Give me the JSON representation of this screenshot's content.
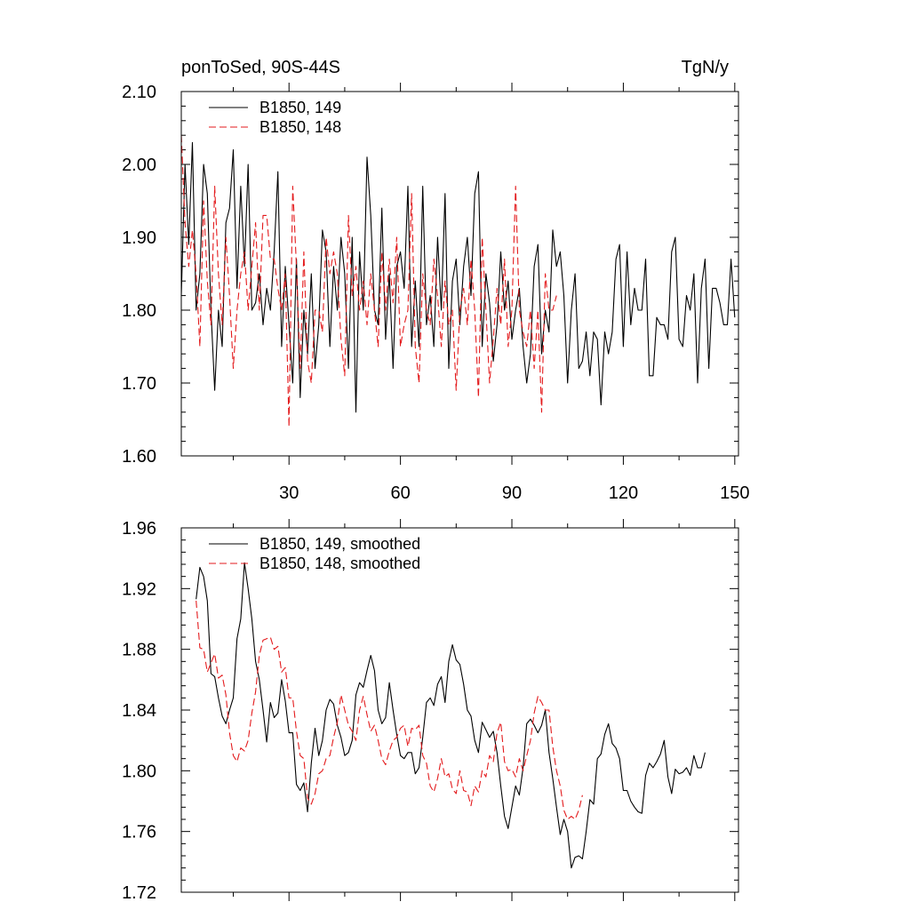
{
  "chart_data": [
    {
      "type": "line",
      "title": "ponToSed, 90S-44S",
      "units": "TgN/y",
      "xlim": [
        1,
        151
      ],
      "ylim": [
        1.6,
        2.1
      ],
      "x_tick_labels": [
        "30",
        "60",
        "90",
        "120",
        "150"
      ],
      "x_tick_values": [
        30,
        60,
        90,
        120,
        150
      ],
      "y_tick_labels": [
        "1.60",
        "1.70",
        "1.80",
        "1.90",
        "2.00",
        "2.10"
      ],
      "y_tick_values": [
        1.6,
        1.7,
        1.8,
        1.9,
        2.0,
        2.1
      ],
      "series": [
        {
          "name": "B1850, 149",
          "color": "#000000",
          "dash": "solid",
          "x_start": 1,
          "values": [
            1.82,
            2.0,
            1.89,
            2.03,
            1.8,
            1.85,
            2.0,
            1.96,
            1.8,
            1.69,
            1.8,
            1.75,
            1.92,
            1.94,
            2.02,
            1.83,
            1.97,
            1.86,
            2.0,
            1.8,
            1.81,
            1.85,
            1.78,
            1.83,
            1.8,
            1.88,
            1.99,
            1.75,
            1.86,
            1.78,
            1.7,
            1.87,
            1.68,
            1.8,
            1.74,
            1.85,
            1.72,
            1.78,
            1.91,
            1.88,
            1.75,
            1.86,
            1.8,
            1.9,
            1.85,
            1.72,
            1.9,
            1.66,
            1.88,
            1.8,
            2.01,
            1.93,
            1.8,
            1.78,
            1.94,
            1.76,
            1.85,
            1.72,
            1.86,
            1.88,
            1.83,
            1.97,
            1.75,
            1.84,
            1.75,
            1.97,
            1.78,
            1.82,
            1.75,
            1.9,
            1.8,
            1.96,
            1.72,
            1.84,
            1.87,
            1.78,
            1.86,
            1.9,
            1.82,
            1.96,
            1.99,
            1.75,
            1.85,
            1.81,
            1.73,
            1.78,
            1.88,
            1.8,
            1.84,
            1.76,
            1.8,
            1.83,
            1.75,
            1.7,
            1.74,
            1.86,
            1.89,
            1.74,
            1.8,
            1.77,
            1.91,
            1.86,
            1.88,
            1.82,
            1.7,
            1.8,
            1.85,
            1.72,
            1.73,
            1.77,
            1.71,
            1.77,
            1.76,
            1.67,
            1.77,
            1.74,
            1.77,
            1.87,
            1.89,
            1.75,
            1.88,
            1.78,
            1.83,
            1.8,
            1.8,
            1.87,
            1.71,
            1.71,
            1.79,
            1.78,
            1.78,
            1.76,
            1.88,
            1.9,
            1.76,
            1.75,
            1.82,
            1.8,
            1.85,
            1.7,
            1.83,
            1.87,
            1.72,
            1.83,
            1.83,
            1.81,
            1.78,
            1.78,
            1.87,
            1.79
          ]
        },
        {
          "name": "B1850, 148",
          "color": "#e31a1c",
          "dash": "dashed",
          "x_start": 1,
          "values": [
            2.04,
            1.92,
            1.86,
            1.91,
            1.85,
            1.75,
            1.95,
            1.84,
            1.78,
            1.97,
            1.85,
            1.78,
            1.9,
            1.82,
            1.72,
            1.8,
            1.85,
            1.88,
            1.8,
            1.86,
            1.92,
            1.8,
            1.93,
            1.93,
            1.87,
            1.87,
            1.83,
            1.8,
            1.85,
            1.64,
            1.97,
            1.86,
            1.72,
            1.88,
            1.73,
            1.7,
            1.8,
            1.8,
            1.77,
            1.9,
            1.85,
            1.88,
            1.85,
            1.76,
            1.71,
            1.93,
            1.82,
            1.86,
            1.8,
            1.84,
            1.78,
            1.85,
            1.8,
            1.75,
            1.88,
            1.8,
            1.87,
            1.81,
            1.9,
            1.75,
            1.78,
            1.8,
            1.96,
            1.75,
            1.7,
            1.85,
            1.8,
            1.78,
            1.87,
            1.82,
            1.75,
            1.84,
            1.78,
            1.8,
            1.69,
            1.8,
            1.83,
            1.78,
            1.87,
            1.8,
            1.68,
            1.9,
            1.8,
            1.7,
            1.76,
            1.83,
            1.78,
            1.87,
            1.75,
            1.8,
            1.97,
            1.8,
            1.77,
            1.75,
            1.8,
            1.72,
            1.8,
            1.66,
            1.85,
            1.8,
            1.8,
            1.82
          ]
        }
      ],
      "legend": [
        {
          "label": "B1850, 149",
          "color": "#000000",
          "dash": "solid"
        },
        {
          "label": "B1850, 148",
          "color": "#e31a1c",
          "dash": "dashed"
        }
      ]
    },
    {
      "type": "line",
      "title": "",
      "xlim": [
        1,
        151
      ],
      "ylim": [
        1.72,
        1.96
      ],
      "x_tick_values": [
        30,
        60,
        90,
        120,
        150
      ],
      "y_tick_labels": [
        "1.72",
        "1.76",
        "1.80",
        "1.84",
        "1.88",
        "1.92",
        "1.96"
      ],
      "y_tick_values": [
        1.72,
        1.76,
        1.8,
        1.84,
        1.88,
        1.92,
        1.96
      ],
      "series": [
        {
          "name": "B1850, 149, smoothed",
          "color": "#000000",
          "dash": "solid",
          "x_start": 5,
          "values": [
            1.913,
            1.934,
            1.928,
            1.912,
            1.864,
            1.862,
            1.848,
            1.836,
            1.831,
            1.84,
            1.848,
            1.887,
            1.9,
            1.937,
            1.92,
            1.9,
            1.872,
            1.86,
            1.84,
            1.819,
            1.845,
            1.835,
            1.838,
            1.86,
            1.846,
            1.825,
            1.825,
            1.791,
            1.787,
            1.792,
            1.773,
            1.805,
            1.828,
            1.81,
            1.82,
            1.84,
            1.847,
            1.844,
            1.83,
            1.822,
            1.81,
            1.812,
            1.82,
            1.85,
            1.858,
            1.855,
            1.866,
            1.876,
            1.866,
            1.84,
            1.831,
            1.835,
            1.858,
            1.84,
            1.824,
            1.81,
            1.808,
            1.812,
            1.812,
            1.798,
            1.802,
            1.822,
            1.845,
            1.848,
            1.843,
            1.857,
            1.862,
            1.845,
            1.872,
            1.883,
            1.873,
            1.87,
            1.857,
            1.84,
            1.836,
            1.82,
            1.812,
            1.832,
            1.827,
            1.822,
            1.826,
            1.812,
            1.79,
            1.77,
            1.762,
            1.776,
            1.79,
            1.784,
            1.802,
            1.831,
            1.834,
            1.83,
            1.825,
            1.83,
            1.84,
            1.812,
            1.795,
            1.776,
            1.758,
            1.768,
            1.76,
            1.736,
            1.743,
            1.744,
            1.742,
            1.76,
            1.781,
            1.778,
            1.808,
            1.811,
            1.824,
            1.831,
            1.818,
            1.815,
            1.808,
            1.787,
            1.787,
            1.78,
            1.776,
            1.773,
            1.772,
            1.797,
            1.805,
            1.802,
            1.806,
            1.811,
            1.82,
            1.796,
            1.785,
            1.801,
            1.798,
            1.799,
            1.802,
            1.797,
            1.81,
            1.802,
            1.802,
            1.812
          ]
        },
        {
          "name": "B1850, 148, smoothed",
          "color": "#e31a1c",
          "dash": "dashed",
          "x_start": 5,
          "values": [
            1.912,
            1.881,
            1.88,
            1.865,
            1.871,
            1.877,
            1.861,
            1.863,
            1.85,
            1.825,
            1.81,
            1.806,
            1.815,
            1.813,
            1.82,
            1.838,
            1.852,
            1.876,
            1.886,
            1.887,
            1.888,
            1.88,
            1.882,
            1.865,
            1.868,
            1.848,
            1.848,
            1.826,
            1.81,
            1.808,
            1.782,
            1.778,
            1.785,
            1.798,
            1.8,
            1.808,
            1.81,
            1.822,
            1.832,
            1.85,
            1.84,
            1.83,
            1.826,
            1.82,
            1.84,
            1.849,
            1.837,
            1.826,
            1.83,
            1.82,
            1.808,
            1.804,
            1.813,
            1.82,
            1.822,
            1.828,
            1.83,
            1.816,
            1.828,
            1.827,
            1.83,
            1.81,
            1.805,
            1.79,
            1.786,
            1.795,
            1.808,
            1.796,
            1.798,
            1.788,
            1.785,
            1.8,
            1.787,
            1.786,
            1.777,
            1.79,
            1.786,
            1.8,
            1.796,
            1.81,
            1.806,
            1.825,
            1.832,
            1.806,
            1.8,
            1.801,
            1.796,
            1.808,
            1.8,
            1.81,
            1.82,
            1.838,
            1.849,
            1.845,
            1.84,
            1.84,
            1.816,
            1.8,
            1.79,
            1.774,
            1.768,
            1.77,
            1.768,
            1.774,
            1.784
          ]
        }
      ],
      "legend": [
        {
          "label": "B1850, 149, smoothed",
          "color": "#000000",
          "dash": "solid"
        },
        {
          "label": "B1850, 148, smoothed",
          "color": "#e31a1c",
          "dash": "dashed"
        }
      ]
    }
  ]
}
